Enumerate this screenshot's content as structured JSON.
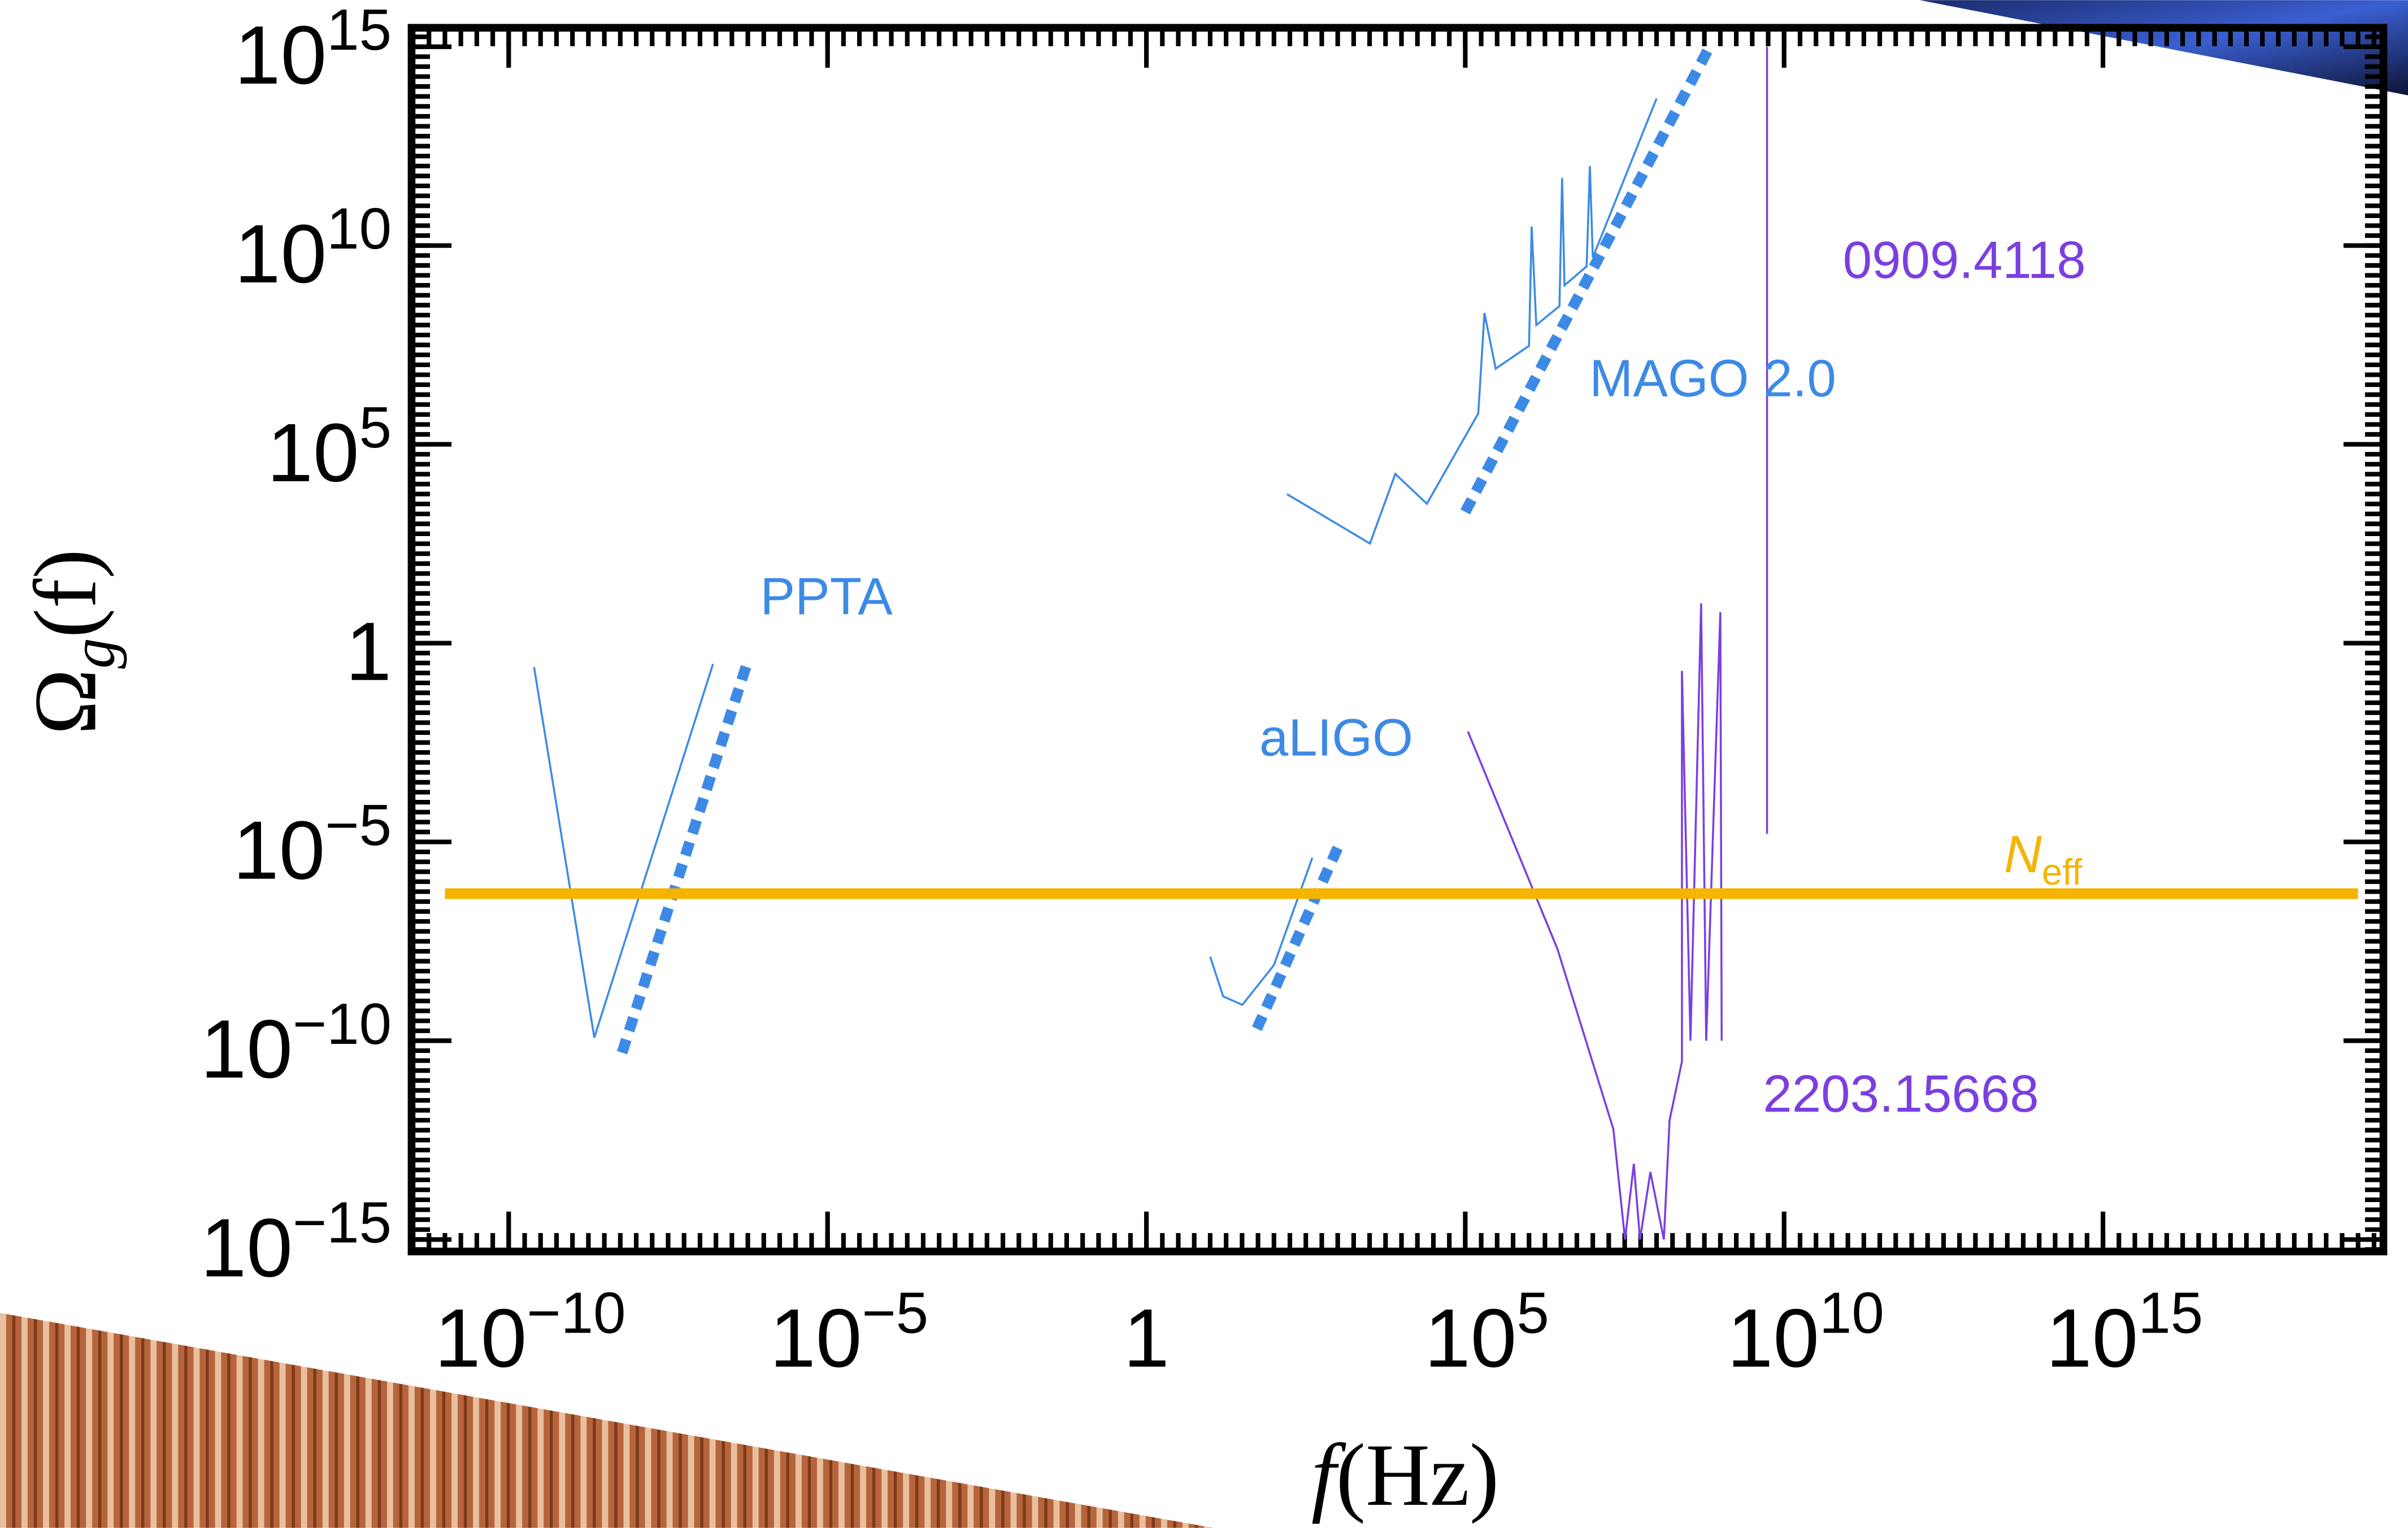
{
  "chart_data": {
    "type": "line",
    "log_x": true,
    "log_y": true,
    "x_label": {
      "var": "f",
      "unit": "(Hz)"
    },
    "y_label": {
      "symbol": "Ω",
      "sub": "g",
      "arg": "(f)"
    },
    "xlim": [
      3e-12,
      2.5e+19
    ],
    "ylim": [
      5e-16,
      3000000000000000.0
    ],
    "xticks": [
      {
        "value": 1e-10,
        "label": "10",
        "exponent": "−10"
      },
      {
        "value": 1e-05,
        "label": "10",
        "exponent": "−5"
      },
      1,
      {
        "value": 100000.0,
        "label": "10",
        "exponent": "5"
      },
      {
        "value": 10000000000.0,
        "label": "10",
        "exponent": "10"
      },
      {
        "value": 1000000000000000.0,
        "label": "10",
        "exponent": "15"
      }
    ],
    "yticks": [
      {
        "value": 1e-15,
        "label": "10",
        "exponent": "−15"
      },
      {
        "value": 1e-10,
        "label": "10",
        "exponent": "−10"
      },
      {
        "value": 1e-05,
        "label": "10",
        "exponent": "−5"
      },
      1,
      {
        "value": 100000.0,
        "label": "10",
        "exponent": "5"
      },
      {
        "value": 10000000000.0,
        "label": "10",
        "exponent": "10"
      },
      {
        "value": 1000000000000000.0,
        "label": "10",
        "exponent": "15"
      }
    ],
    "series": [
      {
        "color": "#3d8ae6",
        "style": "solid",
        "x": [
          2.5e-10,
          2.2e-09,
          1.6e-07
        ],
        "values": [
          0.25,
          1.2e-10,
          0.3
        ]
      },
      {
        "color": "#3d8ae6",
        "style": "dashed",
        "x": [
          6e-09,
          5.6e-07
        ],
        "values": [
          5e-11,
          0.35
        ]
      },
      {
        "color": "#3d8ae6",
        "style": "solid",
        "x": [
          10,
          16,
          32,
          100,
          400
        ],
        "values": [
          1.3e-08,
          1.3e-09,
          8e-10,
          8e-09,
          4e-06
        ]
      },
      {
        "color": "#3d8ae6",
        "style": "dashed",
        "x": [
          54,
          1100
        ],
        "values": [
          2e-10,
          1e-05
        ]
      },
      {
        "color": "#3d8ae6",
        "style": "solid",
        "x": [
          160,
          3200,
          8000,
          25000,
          160000,
          200000,
          300000,
          1000000,
          1100000,
          1300000,
          3000000,
          3300000,
          3600000,
          8000000,
          9000000,
          10000000,
          100000000
        ],
        "values": [
          5600,
          320,
          18000,
          3200,
          600000,
          200000000,
          8000000,
          30000000,
          30000000000,
          100000000,
          300000000,
          500000000000,
          1000000000,
          3000000000,
          1000000000000,
          5000000000,
          50000000000000
        ]
      },
      {
        "color": "#3d8ae6",
        "style": "dashed",
        "x": [
          100000,
          700000000
        ],
        "values": [
          2000,
          1100000000000000.0
        ]
      },
      {
        "color": "#7b3fe0",
        "style": "solid",
        "x": [
          5400000000.0,
          5400000000.0
        ],
        "values": [
          1.6e-05,
          1000000000000000.0
        ]
      },
      {
        "color": "#7b3fe0",
        "style": "solid",
        "x": [
          110000,
          2800000,
          21000000,
          32000000,
          44000000,
          55000000,
          80000000,
          130000000,
          160000000,
          250000000,
          250000000,
          340000000,
          500000000,
          600000000,
          1000000000,
          1050000000
        ],
        "values": [
          0.006,
          2e-08,
          6e-13,
          1e-15,
          8e-14,
          1e-15,
          5e-14,
          1e-15,
          1e-12,
          3e-11,
          0.2,
          1e-10,
          10,
          1e-10,
          6,
          1e-10
        ]
      },
      {
        "color": "#f5b400",
        "style": "thick",
        "x": [
          1e-11,
          1e+19
        ],
        "values": [
          5e-07,
          5e-07
        ]
      }
    ],
    "annotations": [
      {
        "text": "PPTA",
        "color": "#3d8ae6"
      },
      {
        "text": "aLIGO",
        "color": "#3d8ae6"
      },
      {
        "text": "MAGO 2.0",
        "color": "#3d8ae6"
      },
      {
        "text": "0909.4118",
        "color": "#7b3fe0"
      },
      {
        "text": "2203.15668",
        "color": "#7b3fe0"
      },
      {
        "text": "N",
        "sub": "eff",
        "color": "#f5b400"
      }
    ]
  }
}
